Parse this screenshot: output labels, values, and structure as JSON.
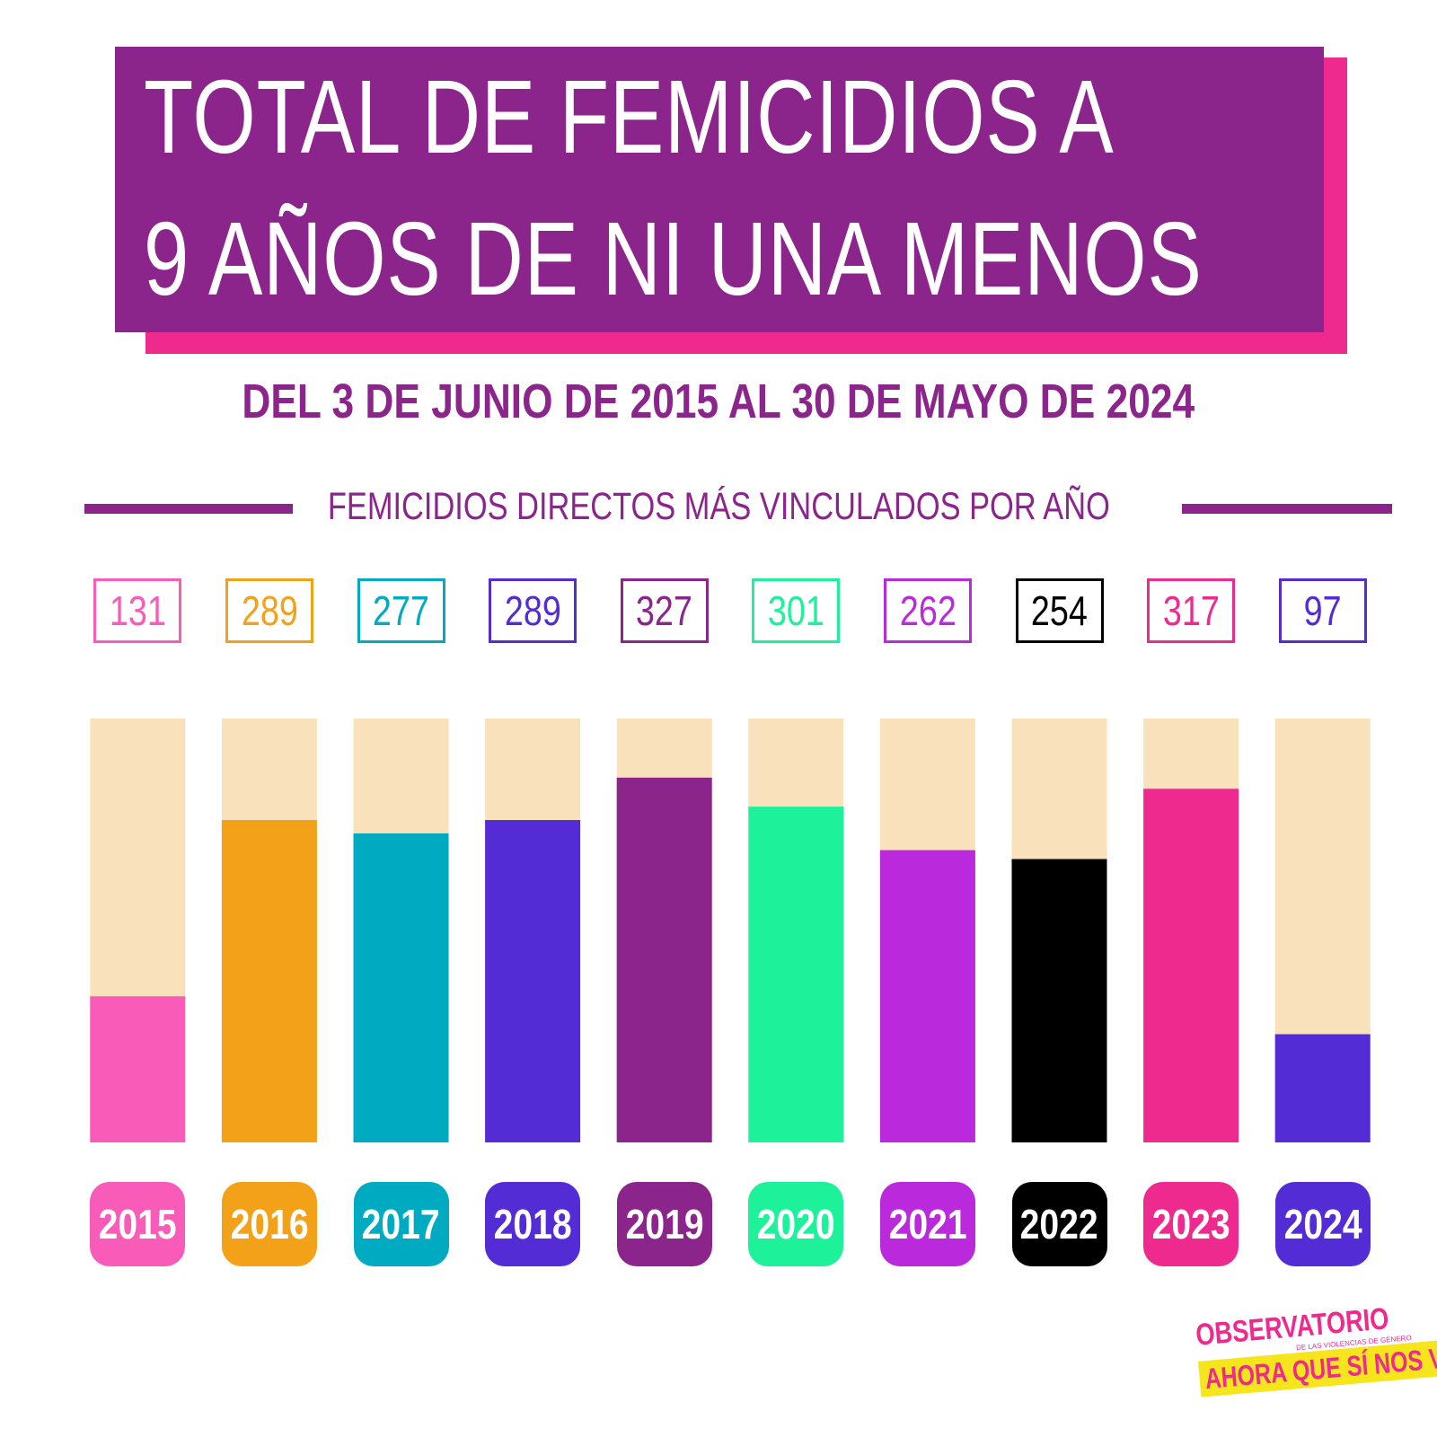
{
  "header": {
    "title_line1": "TOTAL DE FEMICIDIOS A",
    "title_line2": "9 AÑOS DE NI UNA MENOS",
    "subtitle": "DEL 3 DE JUNIO DE 2015 AL 30 DE MAYO DE 2024",
    "section_label": "FEMICIDIOS DIRECTOS MÁS VINCULADOS POR AÑO"
  },
  "colors": {
    "brand_purple": "#8b248b",
    "brand_pink": "#ee2a8e",
    "bar_background": "#f9e2bb"
  },
  "chart_data": {
    "type": "bar",
    "title": "TOTAL DE FEMICIDIOS A 9 AÑOS DE NI UNA MENOS",
    "subtitle": "DEL 3 DE JUNIO DE 2015 AL 30 DE MAYO DE 2024",
    "categories": [
      "2015",
      "2016",
      "2017",
      "2018",
      "2019",
      "2020",
      "2021",
      "2022",
      "2023",
      "2024"
    ],
    "values": [
      131,
      289,
      277,
      289,
      327,
      301,
      262,
      254,
      317,
      97
    ],
    "value_labels": [
      "131",
      "289",
      "277",
      "289",
      "327",
      "301",
      "262",
      "254",
      "317",
      "97"
    ],
    "colors": [
      "#f95cb8",
      "#f4a11a",
      "#00aac0",
      "#542cd6",
      "#8b248b",
      "#1df19a",
      "#bb29dd",
      "#000000",
      "#ee2a8e",
      "#542cd6"
    ],
    "xlabel": "",
    "ylabel": "",
    "ylim": [
      0,
      380
    ],
    "grid": false,
    "legend": "none"
  },
  "logo": {
    "line1": "OBSERVATORIO",
    "line2": "DE LAS VIOLENCIAS DE GÉNERO",
    "line3": "AHORA QUE SÍ NOS VEN"
  }
}
